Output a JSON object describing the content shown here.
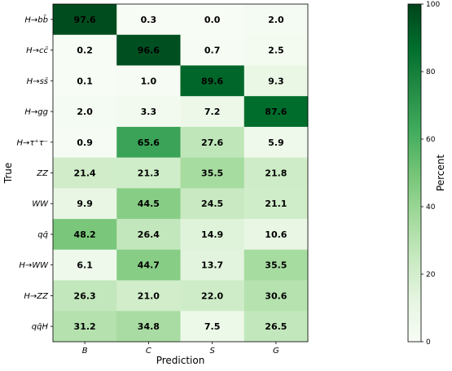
{
  "chart_data": {
    "type": "heatmap",
    "title": "",
    "xlabel": "Prediction",
    "ylabel": "True",
    "colorbar_label": "Percent",
    "colorbar_ticks": [
      0,
      20,
      40,
      60,
      80,
      100
    ],
    "vmin": 0,
    "vmax": 100,
    "colormap": "Greens",
    "columns": [
      "B",
      "C",
      "S",
      "G"
    ],
    "rows": [
      "H→bb̄",
      "H→cc̄",
      "H→ss̄",
      "H→gg",
      "H→τ⁺τ⁻",
      "ZZ",
      "WW",
      "qq̄",
      "H→WW",
      "H→ZZ",
      "qq̄H"
    ],
    "values": [
      [
        97.6,
        0.3,
        0.0,
        2.0
      ],
      [
        0.2,
        96.6,
        0.7,
        2.5
      ],
      [
        0.1,
        1.0,
        89.6,
        9.3
      ],
      [
        2.0,
        3.3,
        7.2,
        87.6
      ],
      [
        0.9,
        65.6,
        27.6,
        5.9
      ],
      [
        21.4,
        21.3,
        35.5,
        21.8
      ],
      [
        9.9,
        44.5,
        24.5,
        21.1
      ],
      [
        48.2,
        26.4,
        14.9,
        10.6
      ],
      [
        6.1,
        44.7,
        13.7,
        35.5
      ],
      [
        26.3,
        21.0,
        22.0,
        30.6
      ],
      [
        31.2,
        34.8,
        7.5,
        26.5
      ]
    ],
    "colors": {
      "low": "#f7fcf5",
      "high": "#00441b",
      "text": "#000000"
    }
  }
}
